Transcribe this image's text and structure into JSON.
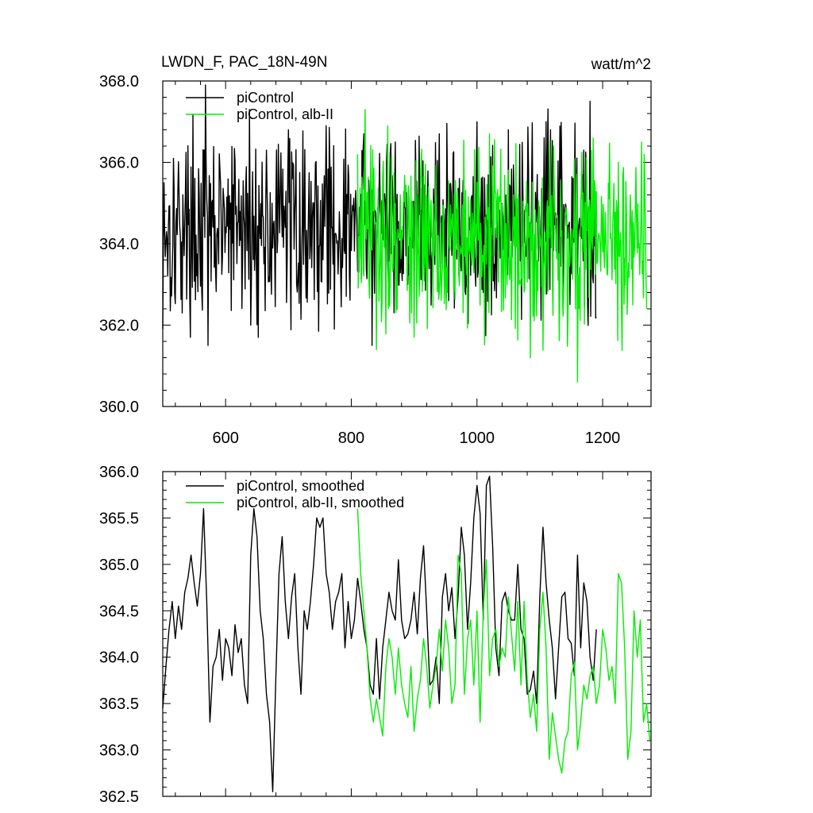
{
  "chart_data": [
    {
      "type": "line",
      "title": "LWDN_F, PAC_18N-49N",
      "units": "watt/m^2",
      "xlim": [
        500,
        1277
      ],
      "ylim": [
        360.0,
        368.0
      ],
      "xticks": [
        600,
        800,
        1000,
        1200
      ],
      "yticks": [
        360.0,
        362.0,
        364.0,
        366.0,
        368.0
      ],
      "ytick_labels": [
        "360.0",
        "362.0",
        "364.0",
        "366.0",
        "368.0"
      ],
      "xtick_labels": [
        "600",
        "800",
        "1000",
        "1200"
      ],
      "legend_position": "top-left",
      "series": [
        {
          "name": "piControl",
          "color": "#000000",
          "x_start": 500,
          "x_end": 1190,
          "mean": 364.4,
          "min": 361.4,
          "max": 367.9,
          "x": [
            500,
            502,
            568,
            572,
            638,
            640,
            700,
            760,
            833,
            835,
            870,
            940,
            1000,
            1010,
            1050,
            1110,
            1170,
            1180,
            1190
          ],
          "y": [
            361.9,
            365.5,
            367.9,
            361.5,
            367.3,
            362.0,
            366.8,
            366.9,
            361.5,
            364.8,
            366.5,
            366.7,
            367.0,
            362.8,
            366.8,
            367.0,
            366.3,
            367.5,
            362.2
          ]
        },
        {
          "name": "piControl, alb-II",
          "color": "#00ee00",
          "x_start": 810,
          "x_end": 1270,
          "mean": 364.2,
          "min": 360.6,
          "max": 367.5,
          "x": [
            810,
            822,
            840,
            858,
            900,
            1020,
            1085,
            1160,
            1185,
            1225,
            1262,
            1270
          ],
          "y": [
            366.2,
            367.3,
            361.4,
            366.9,
            361.7,
            366.7,
            361.2,
            360.6,
            366.6,
            366.0,
            366.5,
            362.4
          ]
        }
      ]
    },
    {
      "type": "line",
      "xlim": [
        500,
        1277
      ],
      "ylim": [
        362.5,
        366.0
      ],
      "yticks": [
        362.5,
        363.0,
        363.5,
        364.0,
        364.5,
        365.0,
        365.5,
        366.0
      ],
      "ytick_labels": [
        "362.5",
        "363.0",
        "363.5",
        "364.0",
        "364.5",
        "365.0",
        "365.5",
        "366.0"
      ],
      "legend_position": "top-left",
      "series": [
        {
          "name": "piControl, smoothed",
          "color": "#000000",
          "x": [
            500,
            505,
            510,
            515,
            520,
            525,
            530,
            535,
            540,
            545,
            550,
            555,
            560,
            565,
            570,
            575,
            580,
            585,
            590,
            595,
            600,
            605,
            610,
            615,
            620,
            625,
            630,
            635,
            640,
            645,
            650,
            655,
            660,
            665,
            670,
            675,
            680,
            685,
            690,
            695,
            700,
            705,
            710,
            715,
            720,
            725,
            730,
            735,
            740,
            745,
            750,
            755,
            760,
            765,
            770,
            775,
            780,
            785,
            790,
            795,
            800,
            805,
            810,
            815,
            820,
            825,
            830,
            835,
            840,
            845,
            850,
            855,
            860,
            865,
            870,
            875,
            880,
            885,
            890,
            895,
            900,
            905,
            910,
            915,
            920,
            925,
            930,
            935,
            940,
            945,
            950,
            955,
            960,
            965,
            970,
            975,
            980,
            985,
            990,
            995,
            1000,
            1005,
            1010,
            1015,
            1020,
            1025,
            1030,
            1035,
            1040,
            1045,
            1050,
            1055,
            1060,
            1065,
            1070,
            1075,
            1080,
            1085,
            1090,
            1095,
            1100,
            1105,
            1110,
            1115,
            1120,
            1125,
            1130,
            1135,
            1140,
            1145,
            1150,
            1155,
            1160,
            1165,
            1170,
            1175,
            1180,
            1185,
            1190
          ],
          "y": [
            363.45,
            363.9,
            364.3,
            364.6,
            364.2,
            364.55,
            364.3,
            364.7,
            364.85,
            365.1,
            364.8,
            364.55,
            364.9,
            365.6,
            364.6,
            363.3,
            363.9,
            364.0,
            364.3,
            363.75,
            364.2,
            364.1,
            363.8,
            364.35,
            364.05,
            364.2,
            363.7,
            363.5,
            365.1,
            365.6,
            365.3,
            364.5,
            364.2,
            363.6,
            363.3,
            362.55,
            363.8,
            364.9,
            365.3,
            364.6,
            364.2,
            364.65,
            364.9,
            364.1,
            363.6,
            364.5,
            364.3,
            364.6,
            365.0,
            365.5,
            365.4,
            365.5,
            364.9,
            364.7,
            364.3,
            364.6,
            364.7,
            364.9,
            364.1,
            364.6,
            364.2,
            364.4,
            364.85,
            364.6,
            364.3,
            364.1,
            363.7,
            363.6,
            364.2,
            363.55,
            364.1,
            364.4,
            364.7,
            364.5,
            364.4,
            365.05,
            364.4,
            364.2,
            364.25,
            364.4,
            364.7,
            364.25,
            364.85,
            365.2,
            364.5,
            363.7,
            363.75,
            364.0,
            363.5,
            364.65,
            364.9,
            364.5,
            364.75,
            364.2,
            364.65,
            365.4,
            365.1,
            364.3,
            364.8,
            365.5,
            365.85,
            365.55,
            364.4,
            365.85,
            365.95,
            365.2,
            364.1,
            363.8,
            364.6,
            364.7,
            364.5,
            364.4,
            364.4,
            365.0,
            364.3,
            364.2,
            363.6,
            363.65,
            363.85,
            363.5,
            364.65,
            365.4,
            364.8,
            364.4,
            364.1,
            363.55,
            364.1,
            364.65,
            364.7,
            364.2,
            364.15,
            363.8,
            365.1,
            364.1,
            364.8,
            364.6,
            364.0,
            363.75,
            364.3
          ]
        },
        {
          "name": "piControl, alb-II, smoothed",
          "color": "#00ee00",
          "x": [
            810,
            815,
            820,
            825,
            830,
            835,
            840,
            845,
            850,
            855,
            860,
            865,
            870,
            875,
            880,
            885,
            890,
            895,
            900,
            905,
            910,
            915,
            920,
            925,
            930,
            935,
            940,
            945,
            950,
            955,
            960,
            965,
            970,
            975,
            980,
            985,
            990,
            995,
            1000,
            1005,
            1010,
            1015,
            1020,
            1025,
            1030,
            1035,
            1040,
            1045,
            1050,
            1055,
            1060,
            1065,
            1070,
            1075,
            1080,
            1085,
            1090,
            1095,
            1100,
            1105,
            1110,
            1115,
            1120,
            1125,
            1130,
            1135,
            1140,
            1145,
            1150,
            1155,
            1160,
            1165,
            1170,
            1175,
            1180,
            1185,
            1190,
            1195,
            1200,
            1205,
            1210,
            1215,
            1220,
            1225,
            1230,
            1235,
            1240,
            1245,
            1250,
            1255,
            1260,
            1265,
            1270,
            1275
          ],
          "y": [
            365.6,
            364.9,
            364.5,
            364.1,
            363.55,
            363.3,
            363.55,
            363.35,
            363.15,
            363.9,
            364.2,
            364.0,
            363.6,
            364.1,
            363.7,
            363.5,
            363.35,
            363.9,
            363.2,
            363.55,
            363.75,
            364.2,
            363.9,
            363.45,
            363.7,
            363.9,
            364.3,
            363.85,
            364.4,
            364.1,
            363.5,
            363.7,
            365.1,
            364.9,
            363.6,
            364.2,
            364.4,
            363.7,
            364.5,
            363.3,
            364.5,
            365.05,
            363.8,
            364.2,
            364.3,
            363.9,
            364.1,
            364.0,
            364.65,
            364.25,
            363.85,
            364.6,
            363.7,
            364.6,
            363.75,
            363.35,
            363.6,
            363.2,
            364.3,
            364.7,
            364.1,
            362.9,
            363.4,
            363.15,
            362.9,
            362.75,
            363.1,
            363.2,
            363.8,
            363.95,
            363.0,
            363.3,
            363.7,
            363.55,
            363.8,
            363.9,
            363.5,
            363.7,
            364.3,
            364.1,
            363.75,
            363.9,
            363.5,
            364.9,
            364.8,
            364.1,
            362.9,
            363.2,
            364.5,
            364.0,
            364.4,
            363.3,
            363.5,
            363.1
          ]
        }
      ]
    }
  ]
}
